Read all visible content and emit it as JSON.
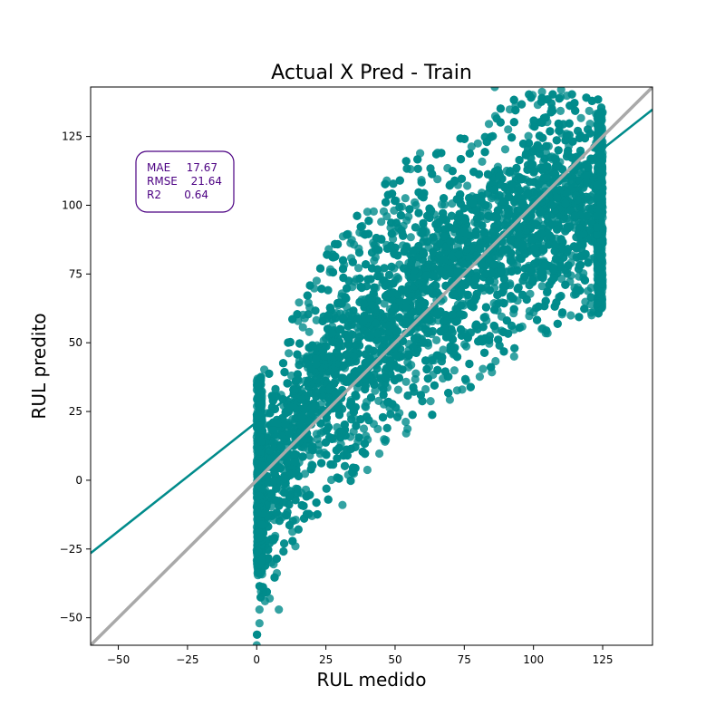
{
  "chart_data": {
    "type": "scatter",
    "title": "Actual X Pred - Train",
    "xlabel": "RUL medido",
    "ylabel": "RUL predito",
    "xlim": [
      -60,
      143
    ],
    "ylim": [
      -60,
      143
    ],
    "xticks": [
      -50,
      -25,
      0,
      25,
      50,
      75,
      100,
      125
    ],
    "yticks": [
      -50,
      -25,
      0,
      25,
      50,
      75,
      100,
      125
    ],
    "grid": false,
    "point_color": "#008b8b",
    "regression_color": "#008b8b",
    "identity_color": "#a9a9a9",
    "metrics": [
      {
        "label": "MAE",
        "value": "17.67"
      },
      {
        "label": "RMSE",
        "value": "21.64"
      },
      {
        "label": "R2",
        "value": "0.64"
      }
    ],
    "metrics_color": "#4b0082",
    "regression_line": {
      "x": [
        -60,
        143
      ],
      "y": [
        -26.5,
        134.8
      ]
    },
    "identity_line": {
      "x": [
        -60,
        143
      ],
      "y": [
        -60,
        143
      ]
    },
    "scatter_envelope": [
      {
        "x": 0,
        "y_low": -60,
        "y_high": 40
      },
      {
        "x": 10,
        "y_low": -28,
        "y_high": 56
      },
      {
        "x": 25,
        "y_low": -10,
        "y_high": 84
      },
      {
        "x": 50,
        "y_low": 10,
        "y_high": 115
      },
      {
        "x": 75,
        "y_low": 30,
        "y_high": 130
      },
      {
        "x": 100,
        "y_low": 50,
        "y_high": 143
      },
      {
        "x": 125,
        "y_low": 60,
        "y_high": 140
      }
    ],
    "outliers": [
      {
        "x": 0,
        "y": -60
      },
      {
        "x": 1,
        "y": -52
      },
      {
        "x": 1,
        "y": -47
      },
      {
        "x": 3,
        "y": -44
      },
      {
        "x": 8,
        "y": -47
      },
      {
        "x": 14,
        "y": -24
      },
      {
        "x": 20,
        "y": -13
      },
      {
        "x": 31,
        "y": -9
      },
      {
        "x": 93,
        "y": 45
      },
      {
        "x": 103,
        "y": 55
      },
      {
        "x": 121,
        "y": 60
      },
      {
        "x": 86,
        "y": 143
      },
      {
        "x": 110,
        "y": 142
      },
      {
        "x": 47,
        "y": 109
      },
      {
        "x": 26,
        "y": 84
      }
    ]
  }
}
